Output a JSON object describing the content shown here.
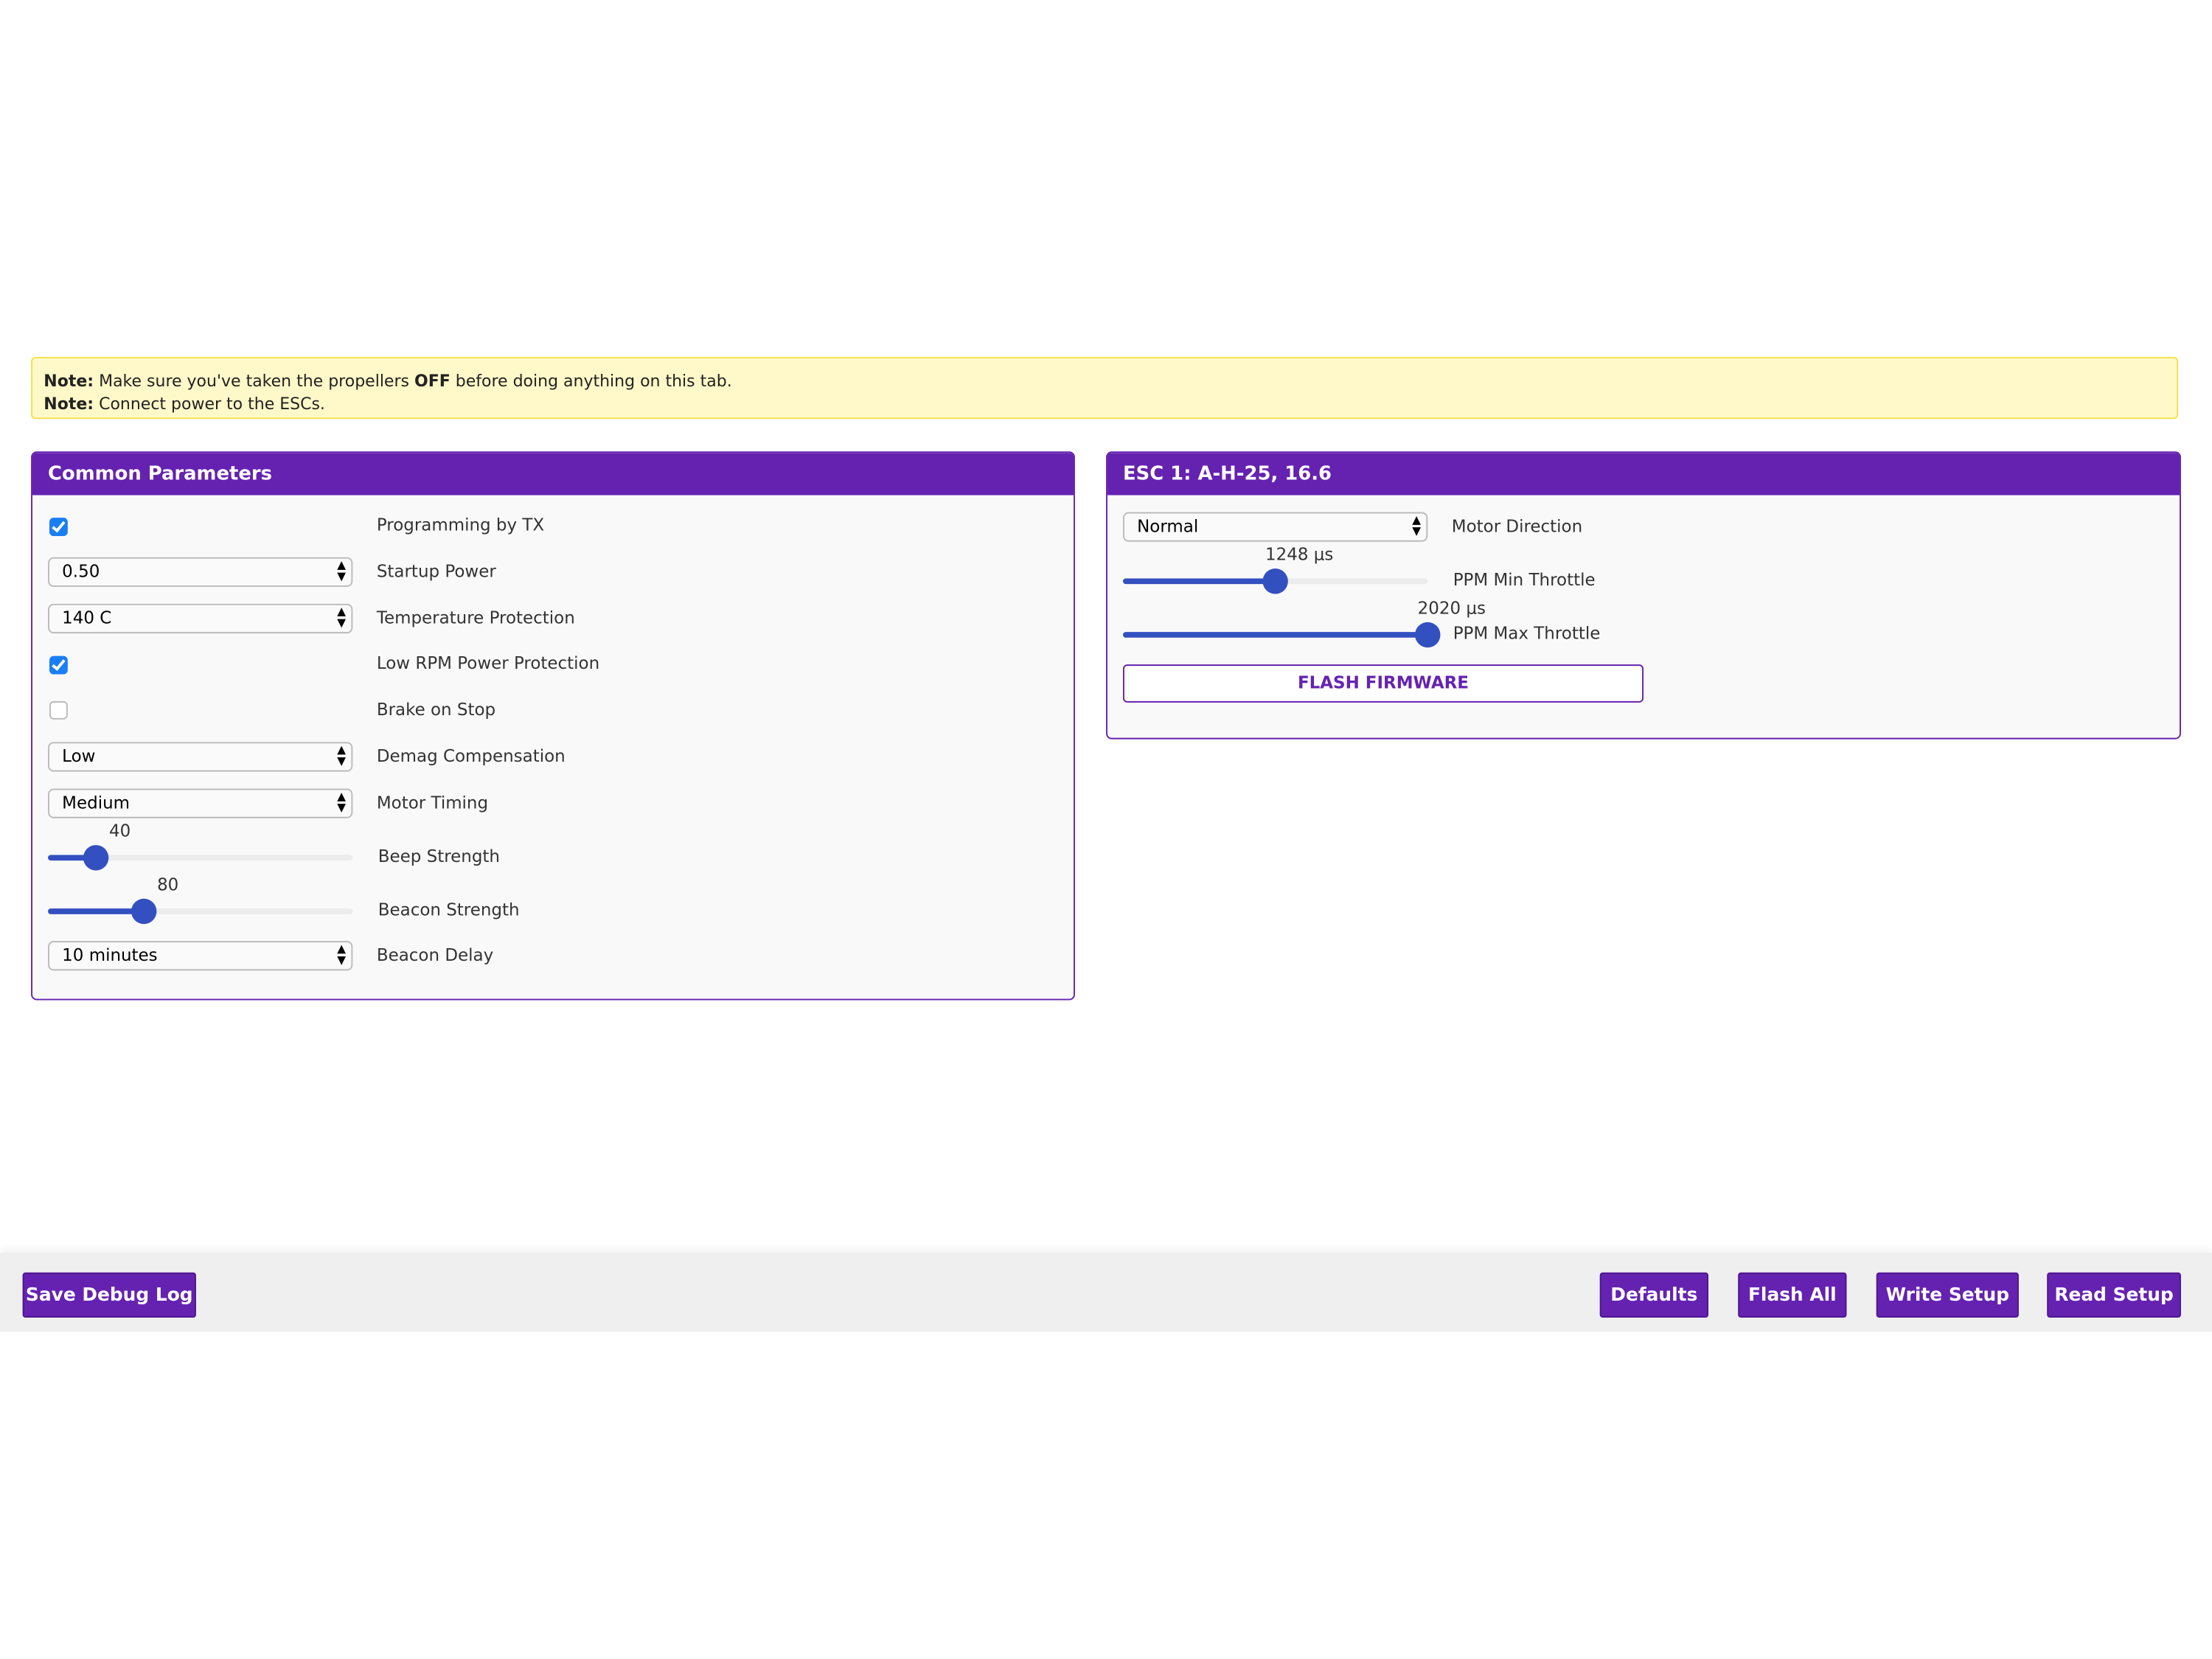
{
  "notes": [
    {
      "label": "Note:",
      "before": " Make sure you've taken the propellers ",
      "bold": "OFF",
      "after": " before doing anything on this tab."
    },
    {
      "label": "Note:",
      "text": " Connect power to the ESCs."
    }
  ],
  "common": {
    "title": "Common Parameters",
    "programming_by_tx": {
      "label": "Programming by TX",
      "checked": true
    },
    "startup_power": {
      "label": "Startup Power",
      "value": "0.50"
    },
    "temperature_protection": {
      "label": "Temperature Protection",
      "value": "140 C"
    },
    "low_rpm": {
      "label": "Low RPM Power Protection",
      "checked": true
    },
    "brake_on_stop": {
      "label": "Brake on Stop",
      "checked": false
    },
    "demag": {
      "label": "Demag Compensation",
      "value": "Low"
    },
    "motor_timing": {
      "label": "Motor Timing",
      "value": "Medium"
    },
    "beep_strength": {
      "label": "Beep Strength",
      "value": "40",
      "level": 0.157
    },
    "beacon_strength": {
      "label": "Beacon Strength",
      "value": "80",
      "level": 0.314
    },
    "beacon_delay": {
      "label": "Beacon Delay",
      "value": "10 minutes"
    }
  },
  "esc": {
    "title": "ESC 1: A-H-25, 16.6",
    "motor_direction": {
      "label": "Motor Direction",
      "value": "Normal"
    },
    "ppm_min": {
      "label": "PPM Min Throttle",
      "value": "1248 μs",
      "level": 0.5
    },
    "ppm_max": {
      "label": "PPM Max Throttle",
      "value": "2020 μs",
      "level": 1.0
    },
    "flash_label": "FLASH FIRMWARE"
  },
  "footer": {
    "save_debug_log": "Save Debug Log",
    "defaults": "Defaults",
    "flash_all": "Flash All",
    "write_setup": "Write Setup",
    "read_setup": "Read Setup"
  },
  "colors": {
    "accent": "#6522b0",
    "slider": "#3350c0",
    "checkbox": "#1a7ef5",
    "note_bg": "#fff8c8"
  }
}
